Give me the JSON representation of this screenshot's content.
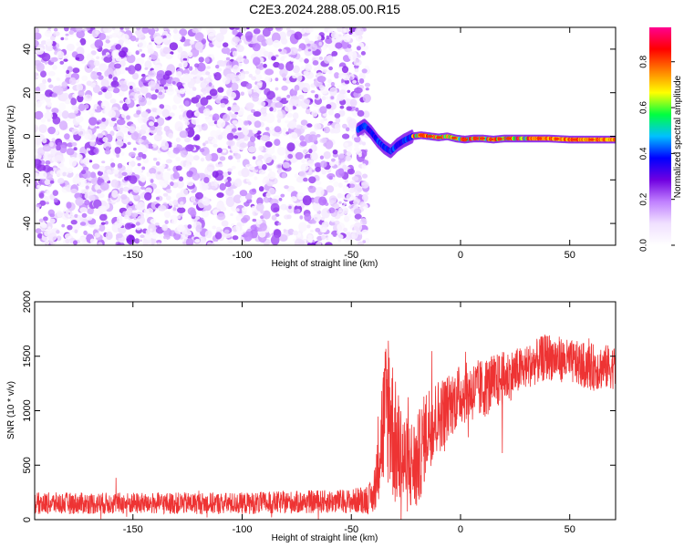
{
  "title": "C2E3.2024.288.05.00.R15",
  "chart_data": [
    {
      "type": "heatmap",
      "xlabel": "Height of straight line (km)",
      "ylabel": "Frequency (Hz)",
      "xlim": [
        -195,
        71
      ],
      "ylim": [
        -50,
        50
      ],
      "xticks": [
        -150,
        -100,
        -50,
        0,
        50
      ],
      "yticks": [
        -40,
        -20,
        0,
        20,
        40
      ],
      "noise_region": {
        "x_range": [
          -195,
          -45
        ],
        "y_range": [
          -50,
          50
        ],
        "typical_amplitude": 0.1
      },
      "signal_trace": [
        {
          "x": -47,
          "y": 3
        },
        {
          "x": -44,
          "y": 5
        },
        {
          "x": -41,
          "y": 2
        },
        {
          "x": -38,
          "y": -2
        },
        {
          "x": -35,
          "y": -5
        },
        {
          "x": -32,
          "y": -7
        },
        {
          "x": -29,
          "y": -4
        },
        {
          "x": -26,
          "y": -2
        },
        {
          "x": -22,
          "y": 0
        },
        {
          "x": -18,
          "y": 0.5
        },
        {
          "x": -14,
          "y": 0
        },
        {
          "x": -10,
          "y": -0.5
        },
        {
          "x": -6,
          "y": 0
        },
        {
          "x": -2,
          "y": -1
        },
        {
          "x": 2,
          "y": -1.5
        },
        {
          "x": 6,
          "y": -1
        },
        {
          "x": 10,
          "y": -1
        },
        {
          "x": 15,
          "y": -1.5
        },
        {
          "x": 20,
          "y": -1
        },
        {
          "x": 30,
          "y": -1
        },
        {
          "x": 40,
          "y": -1
        },
        {
          "x": 50,
          "y": -1.5
        },
        {
          "x": 60,
          "y": -1.5
        },
        {
          "x": 71,
          "y": -1.5
        }
      ],
      "colorbar": {
        "label": "Normalized spectral amplitude",
        "range": [
          0,
          0.95
        ],
        "ticks": [
          0.0,
          0.2,
          0.4,
          0.6,
          0.8
        ],
        "tick_labels": [
          "0.0",
          "0.2",
          "0.4",
          "0.6",
          "0.8"
        ],
        "colors": [
          "#ffffff",
          "#f0e0ff",
          "#c080ff",
          "#7000e0",
          "#0000ff",
          "#00c0ff",
          "#00ff40",
          "#ffff00",
          "#ff8000",
          "#ff0000",
          "#ff0090"
        ]
      },
      "grid": false
    },
    {
      "type": "line",
      "xlabel": "Height of straight line (km)",
      "ylabel": "SNR (10 * v/v)",
      "xlim": [
        -195,
        71
      ],
      "ylim": [
        0,
        2000
      ],
      "xticks": [
        -150,
        -100,
        -50,
        0,
        50
      ],
      "yticks": [
        0,
        500,
        1000,
        1500,
        2000
      ],
      "series": [
        {
          "color": "#ee3333",
          "envelope": [
            {
              "x": -195,
              "mean": 150,
              "spread": 100
            },
            {
              "x": -150,
              "mean": 150,
              "spread": 100
            },
            {
              "x": -100,
              "mean": 150,
              "spread": 100
            },
            {
              "x": -50,
              "mean": 170,
              "spread": 110
            },
            {
              "x": -40,
              "mean": 200,
              "spread": 150
            },
            {
              "x": -37,
              "mean": 700,
              "spread": 500
            },
            {
              "x": -33,
              "mean": 1100,
              "spread": 800
            },
            {
              "x": -30,
              "mean": 700,
              "spread": 600
            },
            {
              "x": -25,
              "mean": 500,
              "spread": 450
            },
            {
              "x": -20,
              "mean": 500,
              "spread": 450
            },
            {
              "x": -15,
              "mean": 850,
              "spread": 400
            },
            {
              "x": -10,
              "mean": 950,
              "spread": 350
            },
            {
              "x": -5,
              "mean": 1050,
              "spread": 300
            },
            {
              "x": 0,
              "mean": 1150,
              "spread": 280
            },
            {
              "x": 10,
              "mean": 1200,
              "spread": 280
            },
            {
              "x": 20,
              "mean": 1300,
              "spread": 250
            },
            {
              "x": 30,
              "mean": 1400,
              "spread": 200
            },
            {
              "x": 40,
              "mean": 1500,
              "spread": 220
            },
            {
              "x": 50,
              "mean": 1450,
              "spread": 200
            },
            {
              "x": 60,
              "mean": 1400,
              "spread": 220
            },
            {
              "x": 71,
              "mean": 1400,
              "spread": 200
            }
          ]
        }
      ],
      "grid": false
    }
  ]
}
